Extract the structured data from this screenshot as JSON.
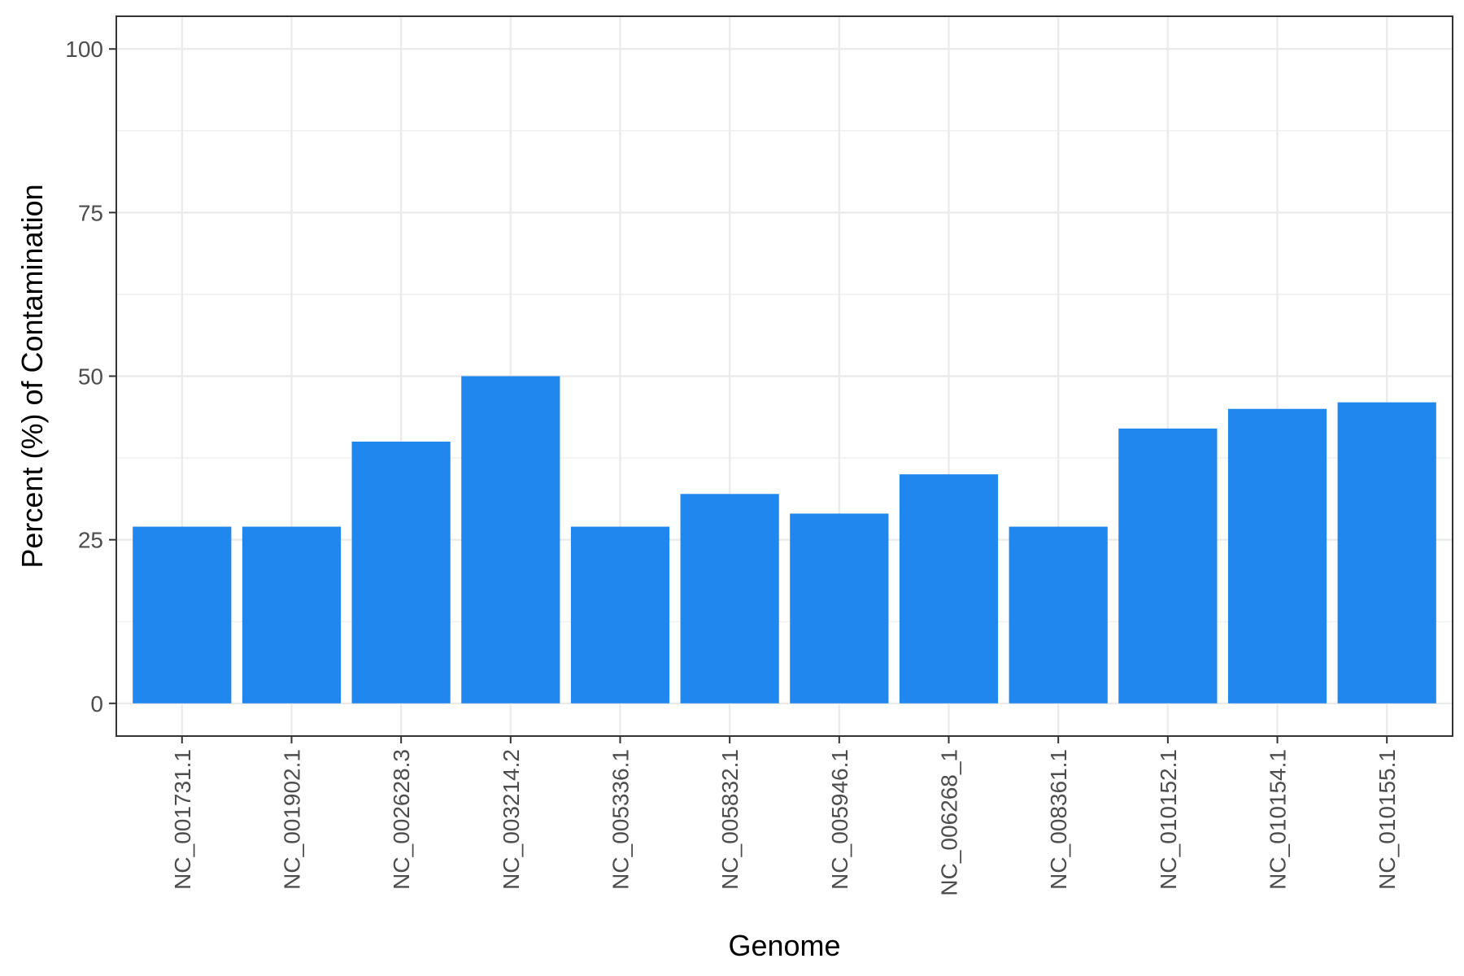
{
  "chart_data": {
    "type": "bar",
    "title": "",
    "xlabel": "Genome",
    "ylabel": "Percent (%) of Contamination",
    "ylim": [
      -5,
      105
    ],
    "yticks": [
      0,
      25,
      50,
      75,
      100
    ],
    "y_minor_ticks": [
      12.5,
      37.5,
      62.5,
      87.5
    ],
    "grid": true,
    "legend": "none",
    "bar_color": "#1f87ed",
    "grid_color": "#ebebeb",
    "categories": [
      "NC_001731.1",
      "NC_001902.1",
      "NC_002628.3",
      "NC_003214.2",
      "NC_005336.1",
      "NC_005832.1",
      "NC_005946.1",
      "NC_006268_1",
      "NC_008361.1",
      "NC_010152.1",
      "NC_010154.1",
      "NC_010155.1"
    ],
    "values": [
      27,
      27,
      40,
      50,
      27,
      32,
      29,
      35,
      27,
      42,
      45,
      46
    ]
  }
}
